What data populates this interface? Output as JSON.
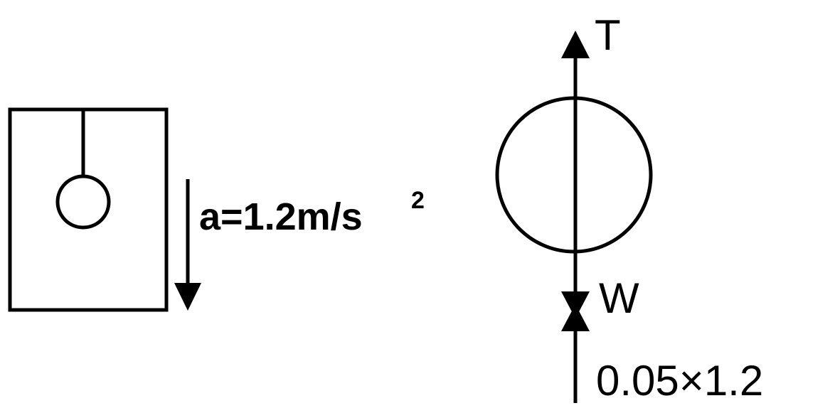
{
  "colors": {
    "ink": "#000000",
    "background": "#ffffff"
  },
  "left_figure": {
    "acceleration": {
      "main": "a=1.2m/s",
      "exponent": "2"
    }
  },
  "right_figure": {
    "tension_label": "T",
    "weight_label": "W",
    "pseudo_force_label": "0.05×1.2"
  }
}
